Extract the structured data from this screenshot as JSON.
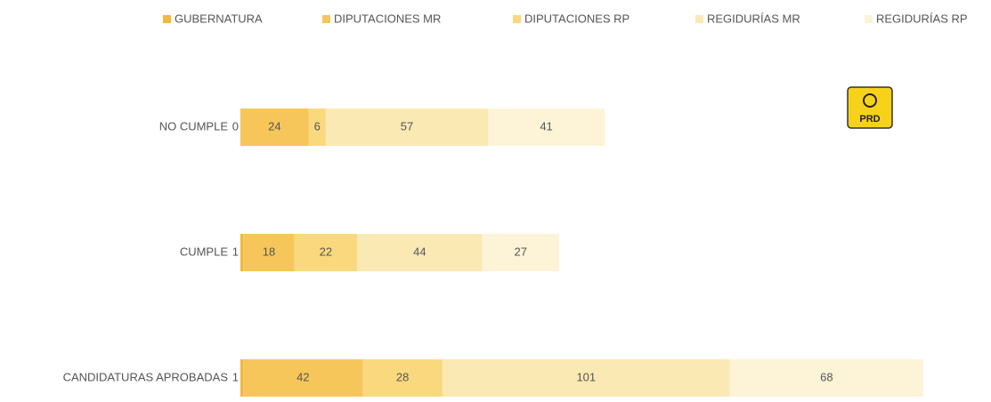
{
  "chart_data": {
    "type": "stacked-barh",
    "categories": [
      "NO CUMPLE",
      "CUMPLE",
      "CANDIDATURAS APROBADAS"
    ],
    "series": [
      {
        "name": "GUBERNATURA",
        "color": "#f3b63f",
        "values": [
          0,
          1,
          1
        ]
      },
      {
        "name": "DIPUTACIONES MR",
        "color": "#f6c65a",
        "values": [
          24,
          18,
          42
        ]
      },
      {
        "name": "DIPUTACIONES RP",
        "color": "#f9d87e",
        "values": [
          6,
          22,
          28
        ]
      },
      {
        "name": "REGIDURÍAS MR",
        "color": "#fbe9b4",
        "values": [
          57,
          44,
          101
        ]
      },
      {
        "name": "REGIDURÍAS RP",
        "color": "#fdf4d8",
        "values": [
          41,
          27,
          68
        ]
      }
    ],
    "logo_text": "PRD"
  }
}
